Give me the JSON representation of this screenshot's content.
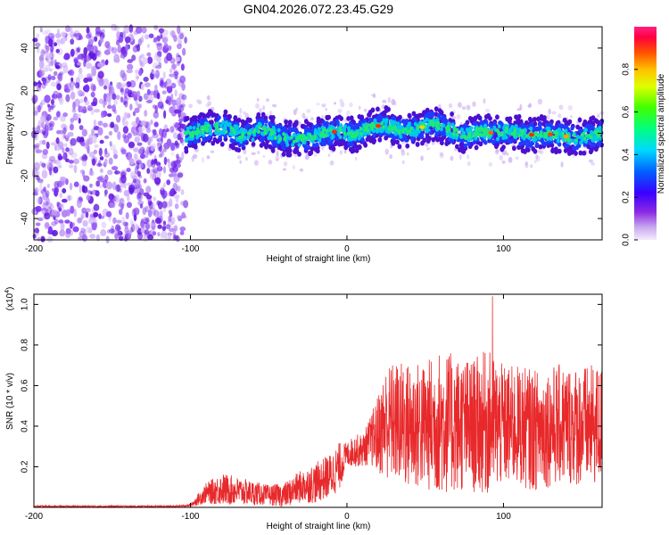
{
  "title": "GN04.2026.072.23.45.G29",
  "chart_data": [
    {
      "type": "heatmap",
      "name": "spectrogram",
      "xlabel": "Height of straight line (km)",
      "ylabel": "Frequency (Hz)",
      "xlim": [
        -200,
        163
      ],
      "ylim": [
        -50,
        50
      ],
      "xticks": [
        -200,
        -100,
        0,
        100
      ],
      "yticks": [
        -40,
        -20,
        0,
        20,
        40
      ],
      "noise_region_x": [
        -200,
        -103
      ],
      "signal_region_x": [
        -103,
        163
      ],
      "signal_trace": {
        "x": [
          -103,
          -95,
          -85,
          -75,
          -65,
          -55,
          -45,
          -35,
          -25,
          -15,
          -5,
          0,
          5,
          15,
          25,
          35,
          45,
          55,
          65,
          75,
          85,
          95,
          105,
          115,
          125,
          135,
          145,
          155,
          163
        ],
        "y": [
          -1,
          1,
          3,
          2,
          -2,
          2,
          -1,
          -3,
          -2,
          0,
          1,
          0,
          -1,
          3,
          4,
          1,
          2,
          5,
          2,
          -1,
          1,
          0,
          1,
          -1,
          0,
          -1,
          -2,
          -1,
          0
        ]
      },
      "colorbar": {
        "label": "Normalized spectral amplitude",
        "ticks": [
          0.0,
          0.2,
          0.4,
          0.6,
          0.8
        ],
        "range": [
          0,
          1
        ]
      }
    },
    {
      "type": "line",
      "name": "snr",
      "xlabel": "Height of straight line (km)",
      "ylabel": "SNR (10 * v/v)",
      "scale_label": "(x10",
      "scale_exp": "4",
      "scale_close": ")",
      "xlim": [
        -200,
        163
      ],
      "ylim": [
        0,
        1.05
      ],
      "xticks": [
        -200,
        -100,
        0,
        100
      ],
      "yticks": [
        0.2,
        0.4,
        0.6,
        0.8,
        1.0
      ],
      "ytick_labels": [
        "0.2",
        "0.4",
        "0.6",
        "0.8",
        "1.0"
      ],
      "color": "#e8292b",
      "envelope": {
        "x": [
          -200,
          -150,
          -110,
          -100,
          -95,
          -90,
          -80,
          -70,
          -60,
          -50,
          -40,
          -30,
          -20,
          -10,
          -5,
          0,
          5,
          10,
          15,
          20,
          25,
          30,
          40,
          50,
          60,
          70,
          80,
          90,
          100,
          110,
          120,
          130,
          140,
          150,
          163
        ],
        "mean": [
          0.005,
          0.005,
          0.005,
          0.01,
          0.04,
          0.07,
          0.09,
          0.08,
          0.07,
          0.06,
          0.06,
          0.1,
          0.12,
          0.16,
          0.2,
          0.26,
          0.28,
          0.28,
          0.33,
          0.36,
          0.42,
          0.42,
          0.4,
          0.4,
          0.42,
          0.41,
          0.4,
          0.42,
          0.4,
          0.4,
          0.38,
          0.4,
          0.41,
          0.4,
          0.4
        ],
        "spread": [
          0.004,
          0.004,
          0.004,
          0.006,
          0.03,
          0.05,
          0.08,
          0.07,
          0.06,
          0.05,
          0.06,
          0.08,
          0.1,
          0.11,
          0.12,
          0.06,
          0.08,
          0.08,
          0.12,
          0.2,
          0.28,
          0.3,
          0.32,
          0.32,
          0.36,
          0.34,
          0.33,
          0.36,
          0.3,
          0.3,
          0.3,
          0.3,
          0.3,
          0.3,
          0.3
        ]
      },
      "peak": {
        "x": 93,
        "y": 1.04
      }
    }
  ]
}
